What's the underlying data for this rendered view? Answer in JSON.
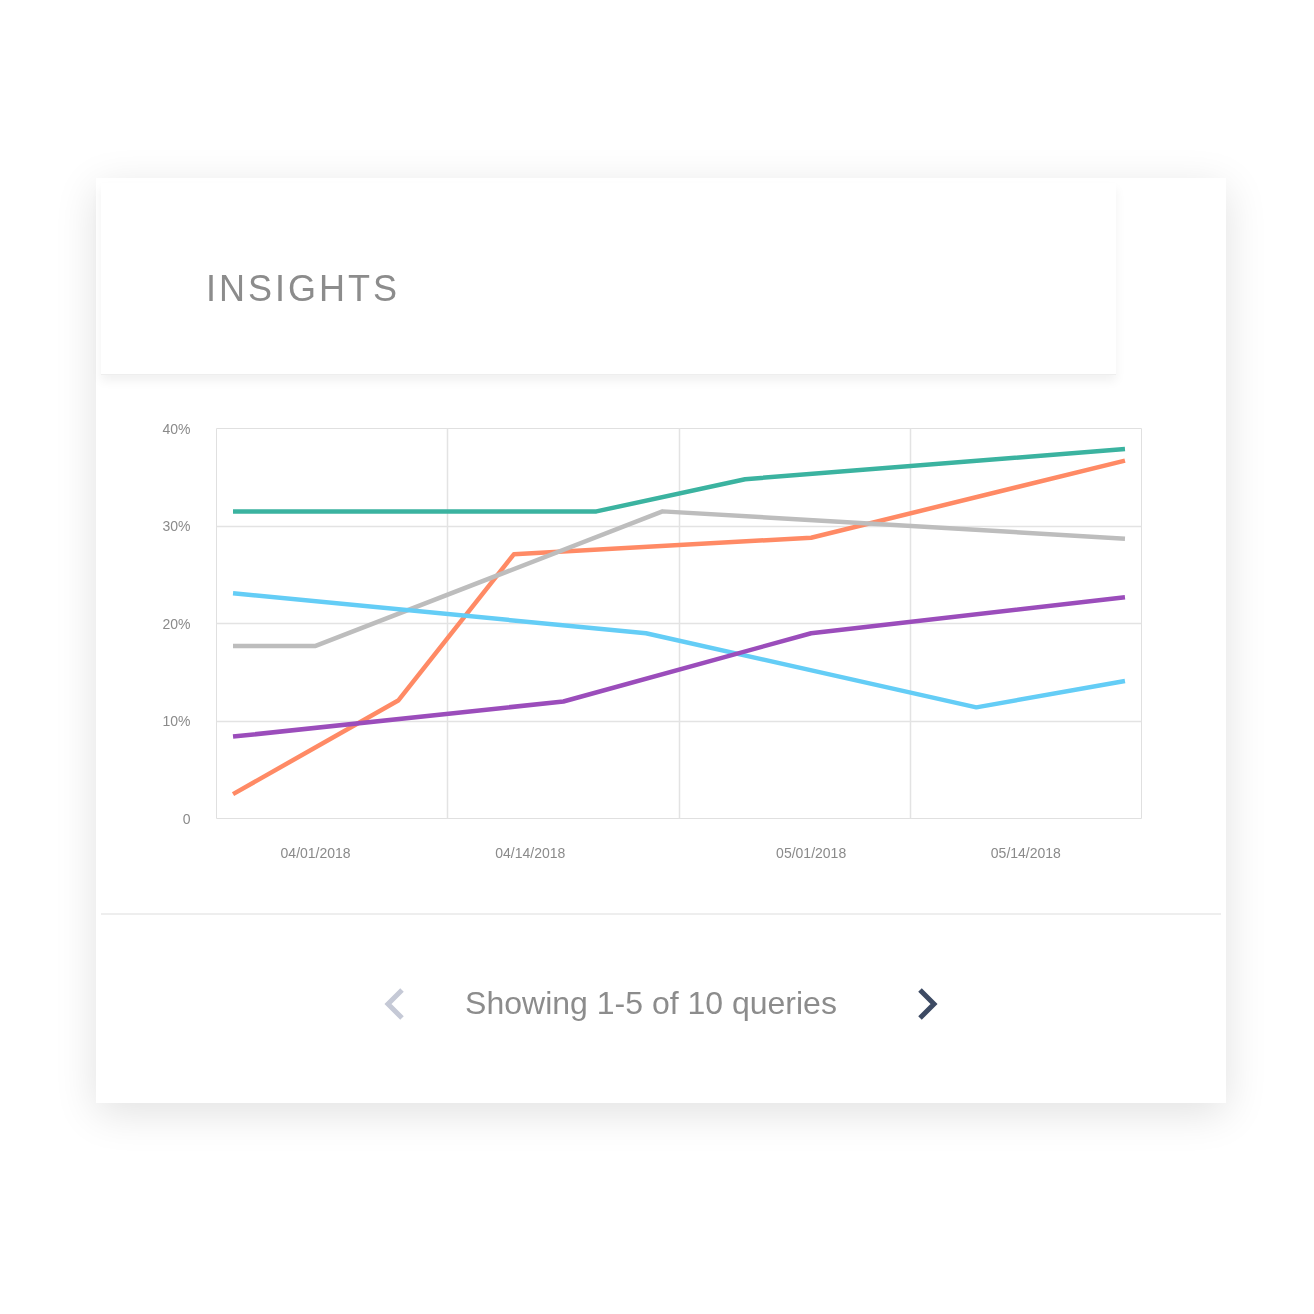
{
  "chart_data": {
    "type": "line",
    "title": "INSIGHTS",
    "annotations": [
      "Showing 1-5 of 10 queries"
    ],
    "xlim": [
      "2018-03-26",
      "2018-05-21"
    ],
    "xticks": [
      {
        "value": "2018-04-01",
        "label": "04/01/2018"
      },
      {
        "value": "2018-04-09",
        "label": null
      },
      {
        "value": "2018-04-14",
        "label": "04/14/2018"
      },
      {
        "value": "2018-04-23",
        "label": null
      },
      {
        "value": "2018-05-01",
        "label": "05/01/2018"
      },
      {
        "value": "2018-05-07",
        "label": null
      },
      {
        "value": "2018-05-14",
        "label": "05/14/2018"
      }
    ],
    "ylim": [
      0,
      40
    ],
    "yticks": [
      {
        "value": 0,
        "label": "0"
      },
      {
        "value": 10,
        "label": "10%"
      },
      {
        "value": 20,
        "label": "20%"
      },
      {
        "value": 30,
        "label": "30%"
      },
      {
        "value": 40,
        "label": "40%"
      }
    ],
    "grid": true,
    "marker": "none",
    "line_style": "solid",
    "series": [
      {
        "color": "#3bb3a0",
        "x": [
          "2018-03-27",
          "2018-04-18",
          "2018-04-27",
          "2018-05-20"
        ],
        "values": [
          31.5,
          31.5,
          34.8,
          37.9
        ]
      },
      {
        "color": "#ff8a65",
        "x": [
          "2018-03-27",
          "2018-04-06",
          "2018-04-13",
          "2018-05-01",
          "2018-05-20"
        ],
        "values": [
          2.5,
          12.1,
          27.1,
          28.8,
          36.7
        ]
      },
      {
        "color": "#bdbdbd",
        "x": [
          "2018-03-27",
          "2018-04-01",
          "2018-04-22",
          "2018-05-20"
        ],
        "values": [
          17.7,
          17.7,
          31.5,
          28.7
        ]
      },
      {
        "color": "#64cdf6",
        "x": [
          "2018-03-27",
          "2018-04-21",
          "2018-05-11",
          "2018-05-20"
        ],
        "values": [
          23.1,
          19.0,
          11.4,
          14.1
        ]
      },
      {
        "color": "#9b4dbb",
        "x": [
          "2018-03-27",
          "2018-04-16",
          "2018-05-01",
          "2018-05-20"
        ],
        "values": [
          8.4,
          12.0,
          19.0,
          22.7
        ]
      }
    ]
  }
}
